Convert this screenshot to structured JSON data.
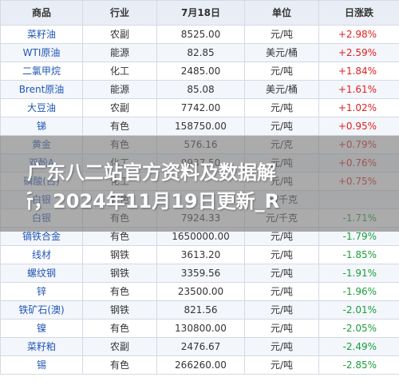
{
  "table": {
    "headers": [
      "商品",
      "行业",
      "7月18日",
      "单位",
      "日涨跌"
    ],
    "rows": [
      {
        "name": "菜籽油",
        "industry": "农副",
        "price": "8525.00",
        "unit": "元/吨",
        "change": "+2.98%",
        "dir": "up"
      },
      {
        "name": "WTI原油",
        "industry": "能源",
        "price": "82.85",
        "unit": "美元/桶",
        "change": "+2.59%",
        "dir": "up"
      },
      {
        "name": "二氯甲烷",
        "industry": "化工",
        "price": "2485.00",
        "unit": "元/吨",
        "change": "+1.84%",
        "dir": "up"
      },
      {
        "name": "Brent原油",
        "industry": "能源",
        "price": "85.08",
        "unit": "美元/桶",
        "change": "+1.61%",
        "dir": "up"
      },
      {
        "name": "大豆油",
        "industry": "农副",
        "price": "7742.00",
        "unit": "元/吨",
        "change": "+1.02%",
        "dir": "up"
      },
      {
        "name": "锑",
        "industry": "有色",
        "price": "158750.00",
        "unit": "元/吨",
        "change": "+0.95%",
        "dir": "up"
      },
      {
        "name": "黄金",
        "industry": "有色",
        "price": "576.16",
        "unit": "元/克",
        "change": "+0.79%",
        "dir": "up"
      },
      {
        "name": "双酚A",
        "industry": "化工",
        "price": "9937.50",
        "unit": "元/吨",
        "change": "+0.76%",
        "dir": "up"
      },
      {
        "name": "磷酸(白)",
        "industry": "化工",
        "price": "",
        "unit": "元/吨",
        "change": "+0.75%",
        "dir": "up"
      },
      {
        "name": "白银",
        "industry": "有色",
        "price": "",
        "unit": "元/千克",
        "change": "",
        "dir": "down"
      },
      {
        "name": "白银",
        "industry": "有色",
        "price": "7924.33",
        "unit": "元/千克",
        "change": "-1.71%",
        "dir": "down"
      },
      {
        "name": "镝铁合金",
        "industry": "有色",
        "price": "1650000.00",
        "unit": "元/吨",
        "change": "-1.79%",
        "dir": "down"
      },
      {
        "name": "线材",
        "industry": "钢铁",
        "price": "3613.20",
        "unit": "元/吨",
        "change": "-1.85%",
        "dir": "down"
      },
      {
        "name": "螺纹钢",
        "industry": "钢铁",
        "price": "3359.56",
        "unit": "元/吨",
        "change": "-1.91%",
        "dir": "down"
      },
      {
        "name": "锌",
        "industry": "有色",
        "price": "23500.00",
        "unit": "元/吨",
        "change": "-1.96%",
        "dir": "down"
      },
      {
        "name": "铁矿石(澳)",
        "industry": "钢铁",
        "price": "821.56",
        "unit": "元/吨",
        "change": "-2.01%",
        "dir": "down"
      },
      {
        "name": "镍",
        "industry": "有色",
        "price": "130800.00",
        "unit": "元/吨",
        "change": "-2.05%",
        "dir": "down"
      },
      {
        "name": "菜籽粕",
        "industry": "农副",
        "price": "2476.67",
        "unit": "元/吨",
        "change": "-2.49%",
        "dir": "down"
      },
      {
        "name": "锡",
        "industry": "有色",
        "price": "266260.00",
        "unit": "元/吨",
        "change": "-2.85%",
        "dir": "down"
      }
    ]
  },
  "overlay": {
    "line1": "广东八二站官方资料及数据解",
    "line2": "析，2024年11月19日更新_R"
  },
  "colors": {
    "up": "#e02020",
    "down": "#1a9e3a",
    "name": "#2256b6"
  }
}
